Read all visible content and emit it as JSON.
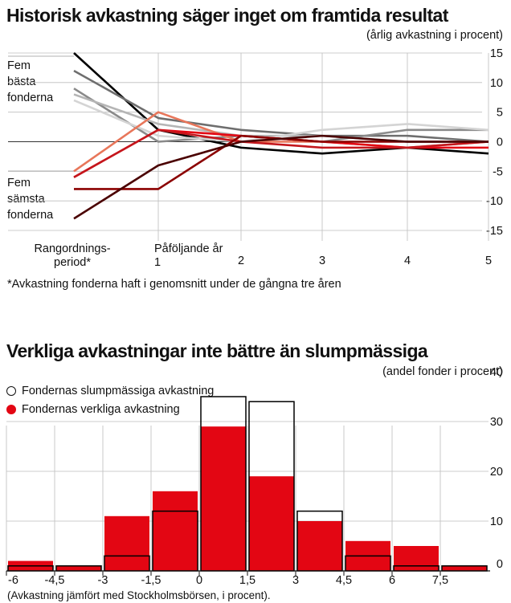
{
  "chart_data": [
    {
      "type": "line",
      "title": "Historisk avkastning säger inget om framtida resultat",
      "ylabel": "(årlig avkastning i procent)",
      "categories": [
        "Rangordnings-\nperiod*",
        "Påföljande år\n1",
        "2",
        "3",
        "4",
        "5"
      ],
      "ylim": [
        -15,
        15
      ],
      "yticks": [
        15,
        10,
        5,
        0,
        -5,
        -10,
        -15
      ],
      "grid": true,
      "group_labels": {
        "top": "Fem\nbästa\nfonderna",
        "bottom": "Fem\nsämsta\nfonderna"
      },
      "footnote": "*Avkastning fonderna haft i genomsnitt under de gångna tre åren",
      "series": [
        {
          "color": "#000000",
          "values": [
            15,
            2,
            -1,
            -2,
            -1,
            -2
          ]
        },
        {
          "color": "#6e6e6e",
          "values": [
            12,
            4,
            2,
            1,
            1,
            0
          ]
        },
        {
          "color": "#8a8a8a",
          "values": [
            9,
            0,
            1,
            0,
            2,
            2
          ]
        },
        {
          "color": "#b5b5b5",
          "values": [
            8,
            3,
            1,
            1,
            0,
            0
          ]
        },
        {
          "color": "#d4d4d4",
          "values": [
            7,
            1,
            0,
            2,
            3,
            2
          ]
        },
        {
          "color": "#e8765a",
          "values": [
            -5,
            5,
            0,
            0,
            -1,
            0
          ]
        },
        {
          "color": "#e30613",
          "values": [
            -6,
            2,
            1,
            0,
            -1,
            -1
          ]
        },
        {
          "color": "#c4161c",
          "values": [
            -6,
            2,
            0,
            -1,
            -1,
            0
          ]
        },
        {
          "color": "#8b0000",
          "values": [
            -8,
            -8,
            1,
            0,
            0,
            0
          ]
        },
        {
          "color": "#4a0000",
          "values": [
            -13,
            -4,
            0,
            1,
            0,
            0
          ]
        }
      ]
    },
    {
      "type": "bar",
      "title": "Verkliga avkastningar inte bättre än slumpmässiga",
      "ylabel": "(andel fonder i procent)",
      "xlabel": "(Avkastning jämfört med Stockholmsbörsen, i procent).",
      "ylim": [
        0,
        40
      ],
      "yticks": [
        40,
        30,
        20,
        10,
        0
      ],
      "xticks": [
        "-6",
        "-4,5",
        "-3",
        "-1,5",
        "0",
        "1,5",
        "3",
        "4,5",
        "6",
        "7,5"
      ],
      "grid": true,
      "colors": {
        "actual": "#e30613",
        "random_outline": "#000000"
      },
      "series": [
        {
          "name": "Fondernas slumpmässiga avkastning",
          "style": "outline",
          "values": [
            1,
            1,
            3,
            12,
            35,
            34,
            12,
            3,
            1,
            1
          ]
        },
        {
          "name": "Fondernas verkliga avkastning",
          "style": "filled",
          "values": [
            2,
            1,
            11,
            16,
            29,
            19,
            10,
            6,
            5,
            1
          ]
        }
      ]
    }
  ]
}
